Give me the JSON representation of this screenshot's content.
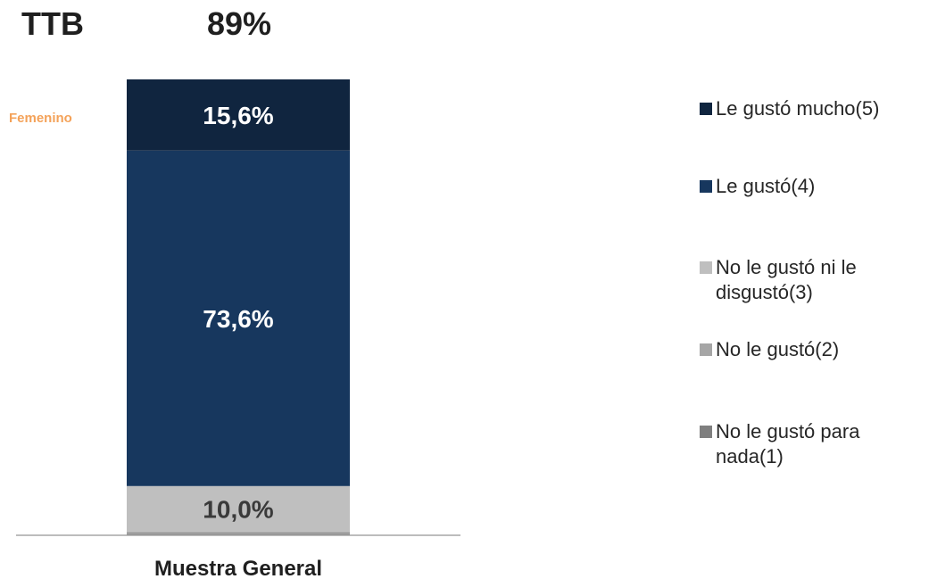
{
  "header": {
    "ttb_label": "TTB",
    "ttb_value": "89%"
  },
  "segment_label": "Femenino",
  "chart_data": {
    "type": "bar",
    "stacked": true,
    "categories": [
      "Muestra General"
    ],
    "ylim": [
      0,
      100
    ],
    "grid": false,
    "legend_position": "right",
    "series": [
      {
        "name": "No le gustó para nada(1)",
        "values": [
          0.3
        ],
        "label": "",
        "color": "#7f7f7f"
      },
      {
        "name": "No le gustó(2)",
        "values": [
          0.5
        ],
        "label": "",
        "color": "#a6a6a6"
      },
      {
        "name": "No le gustó ni le disgustó(3)",
        "values": [
          10.0
        ],
        "label": "10,0%",
        "color": "#bfbfbf"
      },
      {
        "name": "Le gustó(4)",
        "values": [
          73.6
        ],
        "label": "73,6%",
        "color": "#17375e"
      },
      {
        "name": "Le gustó mucho(5)",
        "values": [
          15.6
        ],
        "label": "15,6%",
        "color": "#10253f"
      }
    ]
  },
  "legend": {
    "items": [
      {
        "lines": [
          "Le gustó mucho(5)"
        ],
        "color": "#10253f"
      },
      {
        "lines": [
          "Le gustó(4)"
        ],
        "color": "#17375e"
      },
      {
        "lines": [
          "No le gustó ni le",
          "disgustó(3)"
        ],
        "color": "#bfbfbf"
      },
      {
        "lines": [
          "No le gustó(2)"
        ],
        "color": "#a6a6a6"
      },
      {
        "lines": [
          "No le gustó para",
          "nada(1)"
        ],
        "color": "#7f7f7f"
      }
    ]
  }
}
